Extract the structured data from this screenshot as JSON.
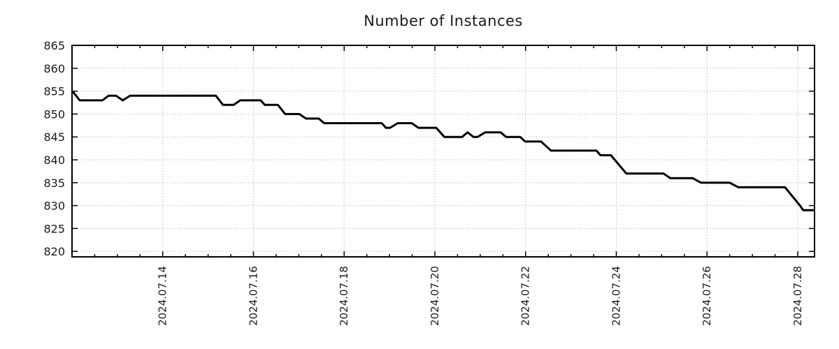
{
  "title": "Number of Instances",
  "colors": {
    "background": "#ffffff",
    "line": "#000000",
    "axis": "#000000",
    "grid": "#a8a8a8",
    "text": "#1a1a1a"
  },
  "chart_data": {
    "type": "line",
    "title": "Number of Instances",
    "xlabel": "",
    "ylabel": "",
    "legend": "none",
    "grid": "dotted at major ticks, both axes",
    "x_axis": {
      "range": [
        12.0,
        28.37
      ],
      "tick_values": [
        14,
        16,
        18,
        20,
        22,
        24,
        26,
        28
      ],
      "tick_labels": [
        "2024.07.14",
        "2024.07.16",
        "2024.07.18",
        "2024.07.20",
        "2024.07.22",
        "2024.07.24",
        "2024.07.26",
        "2024.07.28"
      ],
      "minor_tick_step": 0.5,
      "unit": "decimal day of 2024-07"
    },
    "y_axis": {
      "range": [
        818.8,
        865
      ],
      "tick_values": [
        820,
        825,
        830,
        835,
        840,
        845,
        850,
        855,
        860,
        865
      ]
    },
    "line_style": {
      "color": "#000000",
      "width": 3
    },
    "points": [
      [
        12.01,
        855
      ],
      [
        12.17,
        853
      ],
      [
        12.67,
        853
      ],
      [
        12.81,
        854
      ],
      [
        12.97,
        854
      ],
      [
        13.12,
        853
      ],
      [
        13.28,
        854
      ],
      [
        15.17,
        854
      ],
      [
        15.33,
        852
      ],
      [
        15.56,
        852
      ],
      [
        15.71,
        853
      ],
      [
        16.16,
        853
      ],
      [
        16.25,
        852
      ],
      [
        16.54,
        852
      ],
      [
        16.7,
        850
      ],
      [
        17.01,
        850
      ],
      [
        17.16,
        849
      ],
      [
        17.44,
        849
      ],
      [
        17.56,
        848
      ],
      [
        18.83,
        848
      ],
      [
        18.92,
        847
      ],
      [
        19.01,
        847
      ],
      [
        19.18,
        848
      ],
      [
        19.49,
        848
      ],
      [
        19.64,
        847
      ],
      [
        20.03,
        847
      ],
      [
        20.21,
        845
      ],
      [
        20.6,
        845
      ],
      [
        20.72,
        846
      ],
      [
        20.85,
        845
      ],
      [
        20.94,
        845
      ],
      [
        21.11,
        846
      ],
      [
        21.45,
        846
      ],
      [
        21.57,
        845
      ],
      [
        21.88,
        845
      ],
      [
        21.99,
        844
      ],
      [
        22.34,
        844
      ],
      [
        22.56,
        842
      ],
      [
        23.56,
        842
      ],
      [
        23.65,
        841
      ],
      [
        23.88,
        841
      ],
      [
        24.22,
        837
      ],
      [
        25.04,
        837
      ],
      [
        25.19,
        836
      ],
      [
        25.68,
        836
      ],
      [
        25.87,
        835
      ],
      [
        26.5,
        835
      ],
      [
        26.69,
        834
      ],
      [
        27.72,
        834
      ],
      [
        28.05,
        830
      ],
      [
        28.12,
        829
      ],
      [
        28.37,
        829
      ]
    ]
  }
}
